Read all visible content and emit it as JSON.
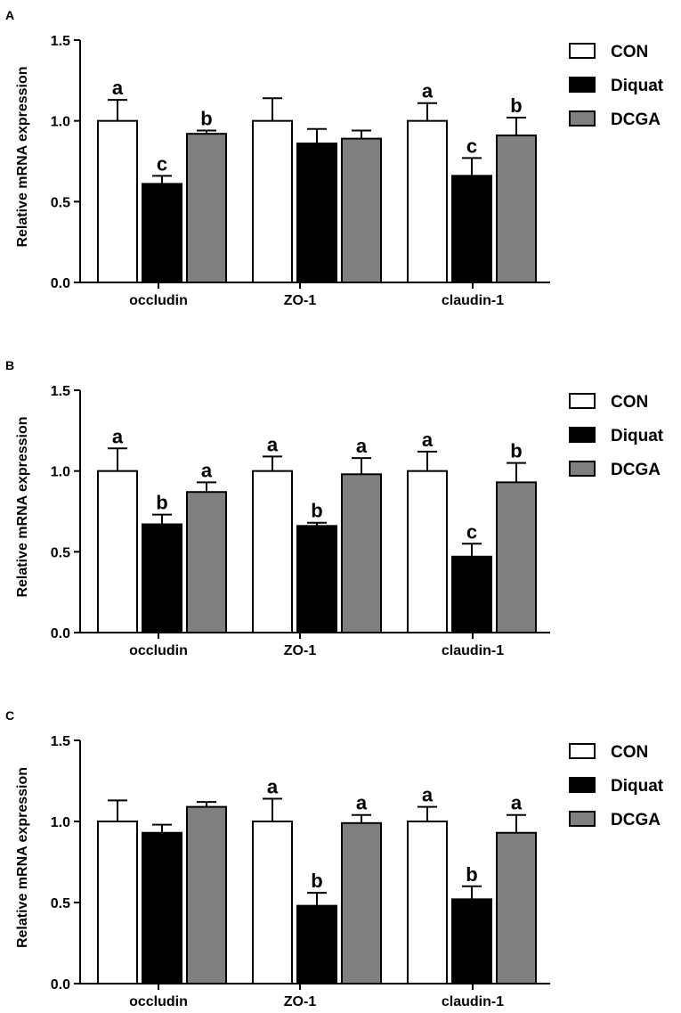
{
  "colors": {
    "CON": "#ffffff",
    "Diquat": "#000000",
    "DCGA": "#808080",
    "axis": "#000000"
  },
  "chart_data": [
    {
      "panel": "A",
      "type": "bar",
      "ylabel": "Relative mRNA expression",
      "ylim": [
        0,
        1.5
      ],
      "yticks": [
        "0.0",
        "0.5",
        "1.0",
        "1.5"
      ],
      "categories": [
        "occludin",
        "ZO-1",
        "claudin-1"
      ],
      "legend": [
        "CON",
        "Diquat",
        "DCGA"
      ],
      "legend_position": "right",
      "series": [
        {
          "name": "CON",
          "values": [
            1.0,
            1.0,
            1.0
          ],
          "errors": [
            0.13,
            0.14,
            0.11
          ],
          "labels": [
            "a",
            "",
            "a"
          ]
        },
        {
          "name": "Diquat",
          "values": [
            0.61,
            0.86,
            0.66
          ],
          "errors": [
            0.05,
            0.09,
            0.11
          ],
          "labels": [
            "c",
            "",
            "c"
          ]
        },
        {
          "name": "DCGA",
          "values": [
            0.92,
            0.89,
            0.91
          ],
          "errors": [
            0.02,
            0.05,
            0.11
          ],
          "labels": [
            "b",
            "",
            "b"
          ]
        }
      ]
    },
    {
      "panel": "B",
      "type": "bar",
      "ylabel": "Relative mRNA expression",
      "ylim": [
        0,
        1.5
      ],
      "yticks": [
        "0.0",
        "0.5",
        "1.0",
        "1.5"
      ],
      "categories": [
        "occludin",
        "ZO-1",
        "claudin-1"
      ],
      "legend": [
        "CON",
        "Diquat",
        "DCGA"
      ],
      "legend_position": "right",
      "series": [
        {
          "name": "CON",
          "values": [
            1.0,
            1.0,
            1.0
          ],
          "errors": [
            0.14,
            0.09,
            0.12
          ],
          "labels": [
            "a",
            "a",
            "a"
          ]
        },
        {
          "name": "Diquat",
          "values": [
            0.67,
            0.66,
            0.47
          ],
          "errors": [
            0.06,
            0.02,
            0.08
          ],
          "labels": [
            "b",
            "b",
            "c"
          ]
        },
        {
          "name": "DCGA",
          "values": [
            0.87,
            0.98,
            0.93
          ],
          "errors": [
            0.06,
            0.1,
            0.12
          ],
          "labels": [
            "a",
            "a",
            "b"
          ]
        }
      ]
    },
    {
      "panel": "C",
      "type": "bar",
      "ylabel": "Relative mRNA expression",
      "ylim": [
        0,
        1.5
      ],
      "yticks": [
        "0.0",
        "0.5",
        "1.0",
        "1.5"
      ],
      "categories": [
        "occludin",
        "ZO-1",
        "claudin-1"
      ],
      "legend": [
        "CON",
        "Diquat",
        "DCGA"
      ],
      "legend_position": "right",
      "series": [
        {
          "name": "CON",
          "values": [
            1.0,
            1.0,
            1.0
          ],
          "errors": [
            0.13,
            0.14,
            0.09
          ],
          "labels": [
            "",
            "a",
            "a"
          ]
        },
        {
          "name": "Diquat",
          "values": [
            0.93,
            0.48,
            0.52
          ],
          "errors": [
            0.05,
            0.08,
            0.08
          ],
          "labels": [
            "",
            "b",
            "b"
          ]
        },
        {
          "name": "DCGA",
          "values": [
            1.09,
            0.99,
            0.93
          ],
          "errors": [
            0.03,
            0.05,
            0.11
          ],
          "labels": [
            "",
            "a",
            "a"
          ]
        }
      ]
    }
  ]
}
